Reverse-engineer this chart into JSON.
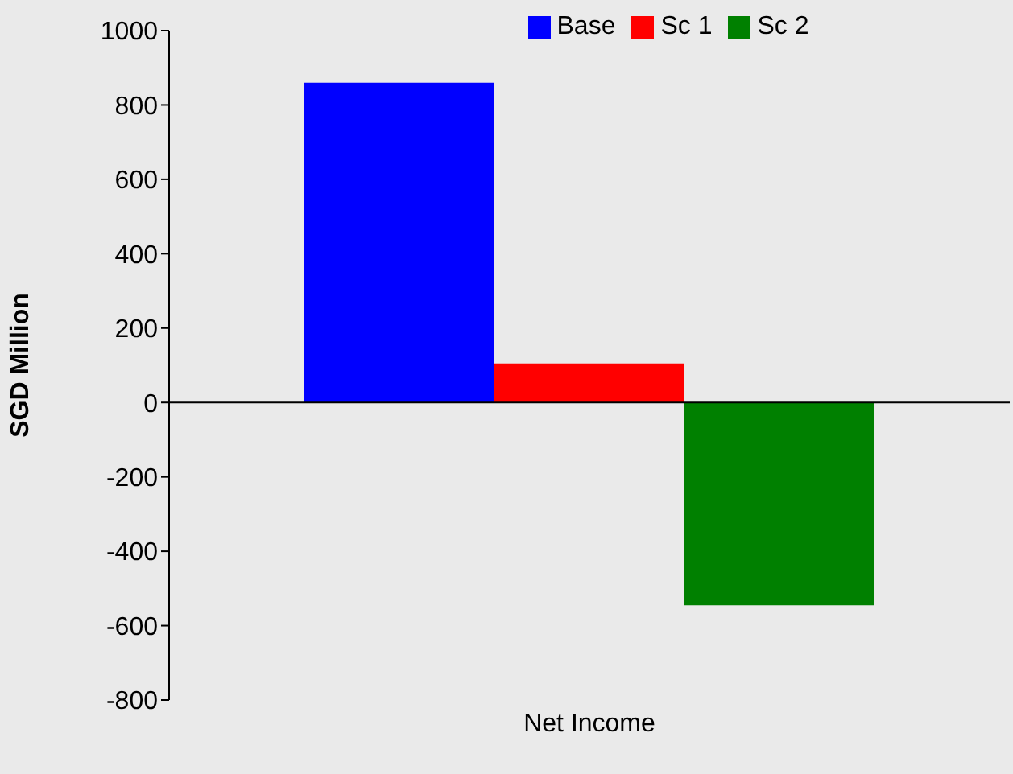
{
  "chart_data": {
    "type": "bar",
    "categories": [
      "Net Income"
    ],
    "xlabel": null,
    "ylabel": "SGD Million",
    "series": [
      {
        "name": "Base",
        "color": "#0000ff",
        "values": [
          860
        ]
      },
      {
        "name": "Sc 1",
        "color": "#ff0000",
        "values": [
          105
        ]
      },
      {
        "name": "Sc 2",
        "color": "#008000",
        "values": [
          -545
        ]
      }
    ],
    "ref_lines": [
      {
        "axis": "y",
        "value": 0,
        "color": "#000000"
      }
    ],
    "ylim": [
      -800,
      1000
    ],
    "yticks": [
      -800,
      -600,
      -400,
      -200,
      0,
      200,
      400,
      600,
      800,
      1000
    ],
    "grid": false,
    "legend": "top"
  }
}
